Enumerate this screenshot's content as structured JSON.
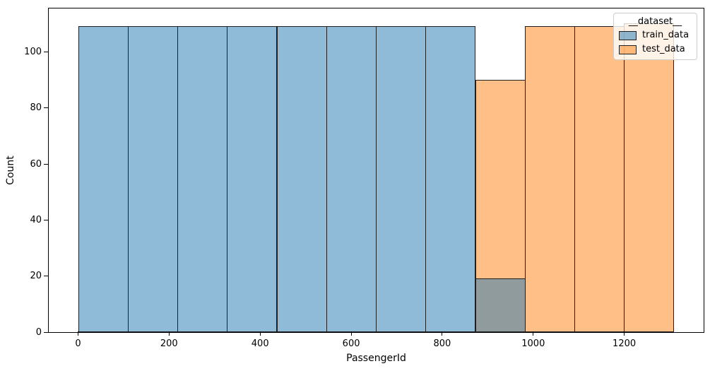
{
  "chart_data": {
    "type": "bar",
    "subtype": "histogram",
    "title": "",
    "xlabel": "PassengerId",
    "ylabel": "Count",
    "bin_edges": [
      1,
      110,
      219,
      328,
      437,
      546,
      655,
      764,
      873,
      982,
      1091,
      1200,
      1309
    ],
    "series": [
      {
        "name": "train_data",
        "counts": [
          109,
          109,
          109,
          109,
          109,
          109,
          109,
          109,
          19,
          0,
          0,
          0
        ],
        "fill": "rgba(31,119,180,0.5)",
        "fill_on_white": "#8fbbd9",
        "edge": "#1f1f1f"
      },
      {
        "name": "test_data",
        "counts": [
          0,
          0,
          0,
          0,
          0,
          0,
          0,
          0,
          90,
          109,
          109,
          110
        ],
        "fill": "rgba(255,127,14,0.5)",
        "fill_on_white": "#ffbf86",
        "edge": "#1f1f1f"
      }
    ],
    "overlap_blend_color": "#8f9b9d",
    "xticks": [
      0,
      200,
      400,
      600,
      800,
      1000,
      1200
    ],
    "yticks": [
      0,
      20,
      40,
      60,
      80,
      100
    ],
    "xlim": [
      -64.4,
      1374.4
    ],
    "ylim": [
      0,
      115.5
    ],
    "grid": false,
    "legend_position": "upper right"
  },
  "legend": {
    "title": "__dataset__",
    "entries": [
      {
        "label": "train_data",
        "swatch_fill": "rgba(31,119,180,0.5)",
        "swatch_edge": "#1f1f1f"
      },
      {
        "label": "test_data",
        "swatch_fill": "rgba(255,127,14,0.5)",
        "swatch_edge": "#1f1f1f"
      }
    ]
  },
  "colors": {
    "background": "#ffffff",
    "spine": "#000000",
    "tick": "#000000",
    "text": "#000000",
    "legend_background": "rgba(255,255,255,0.8)",
    "legend_border": "#cccccc"
  }
}
